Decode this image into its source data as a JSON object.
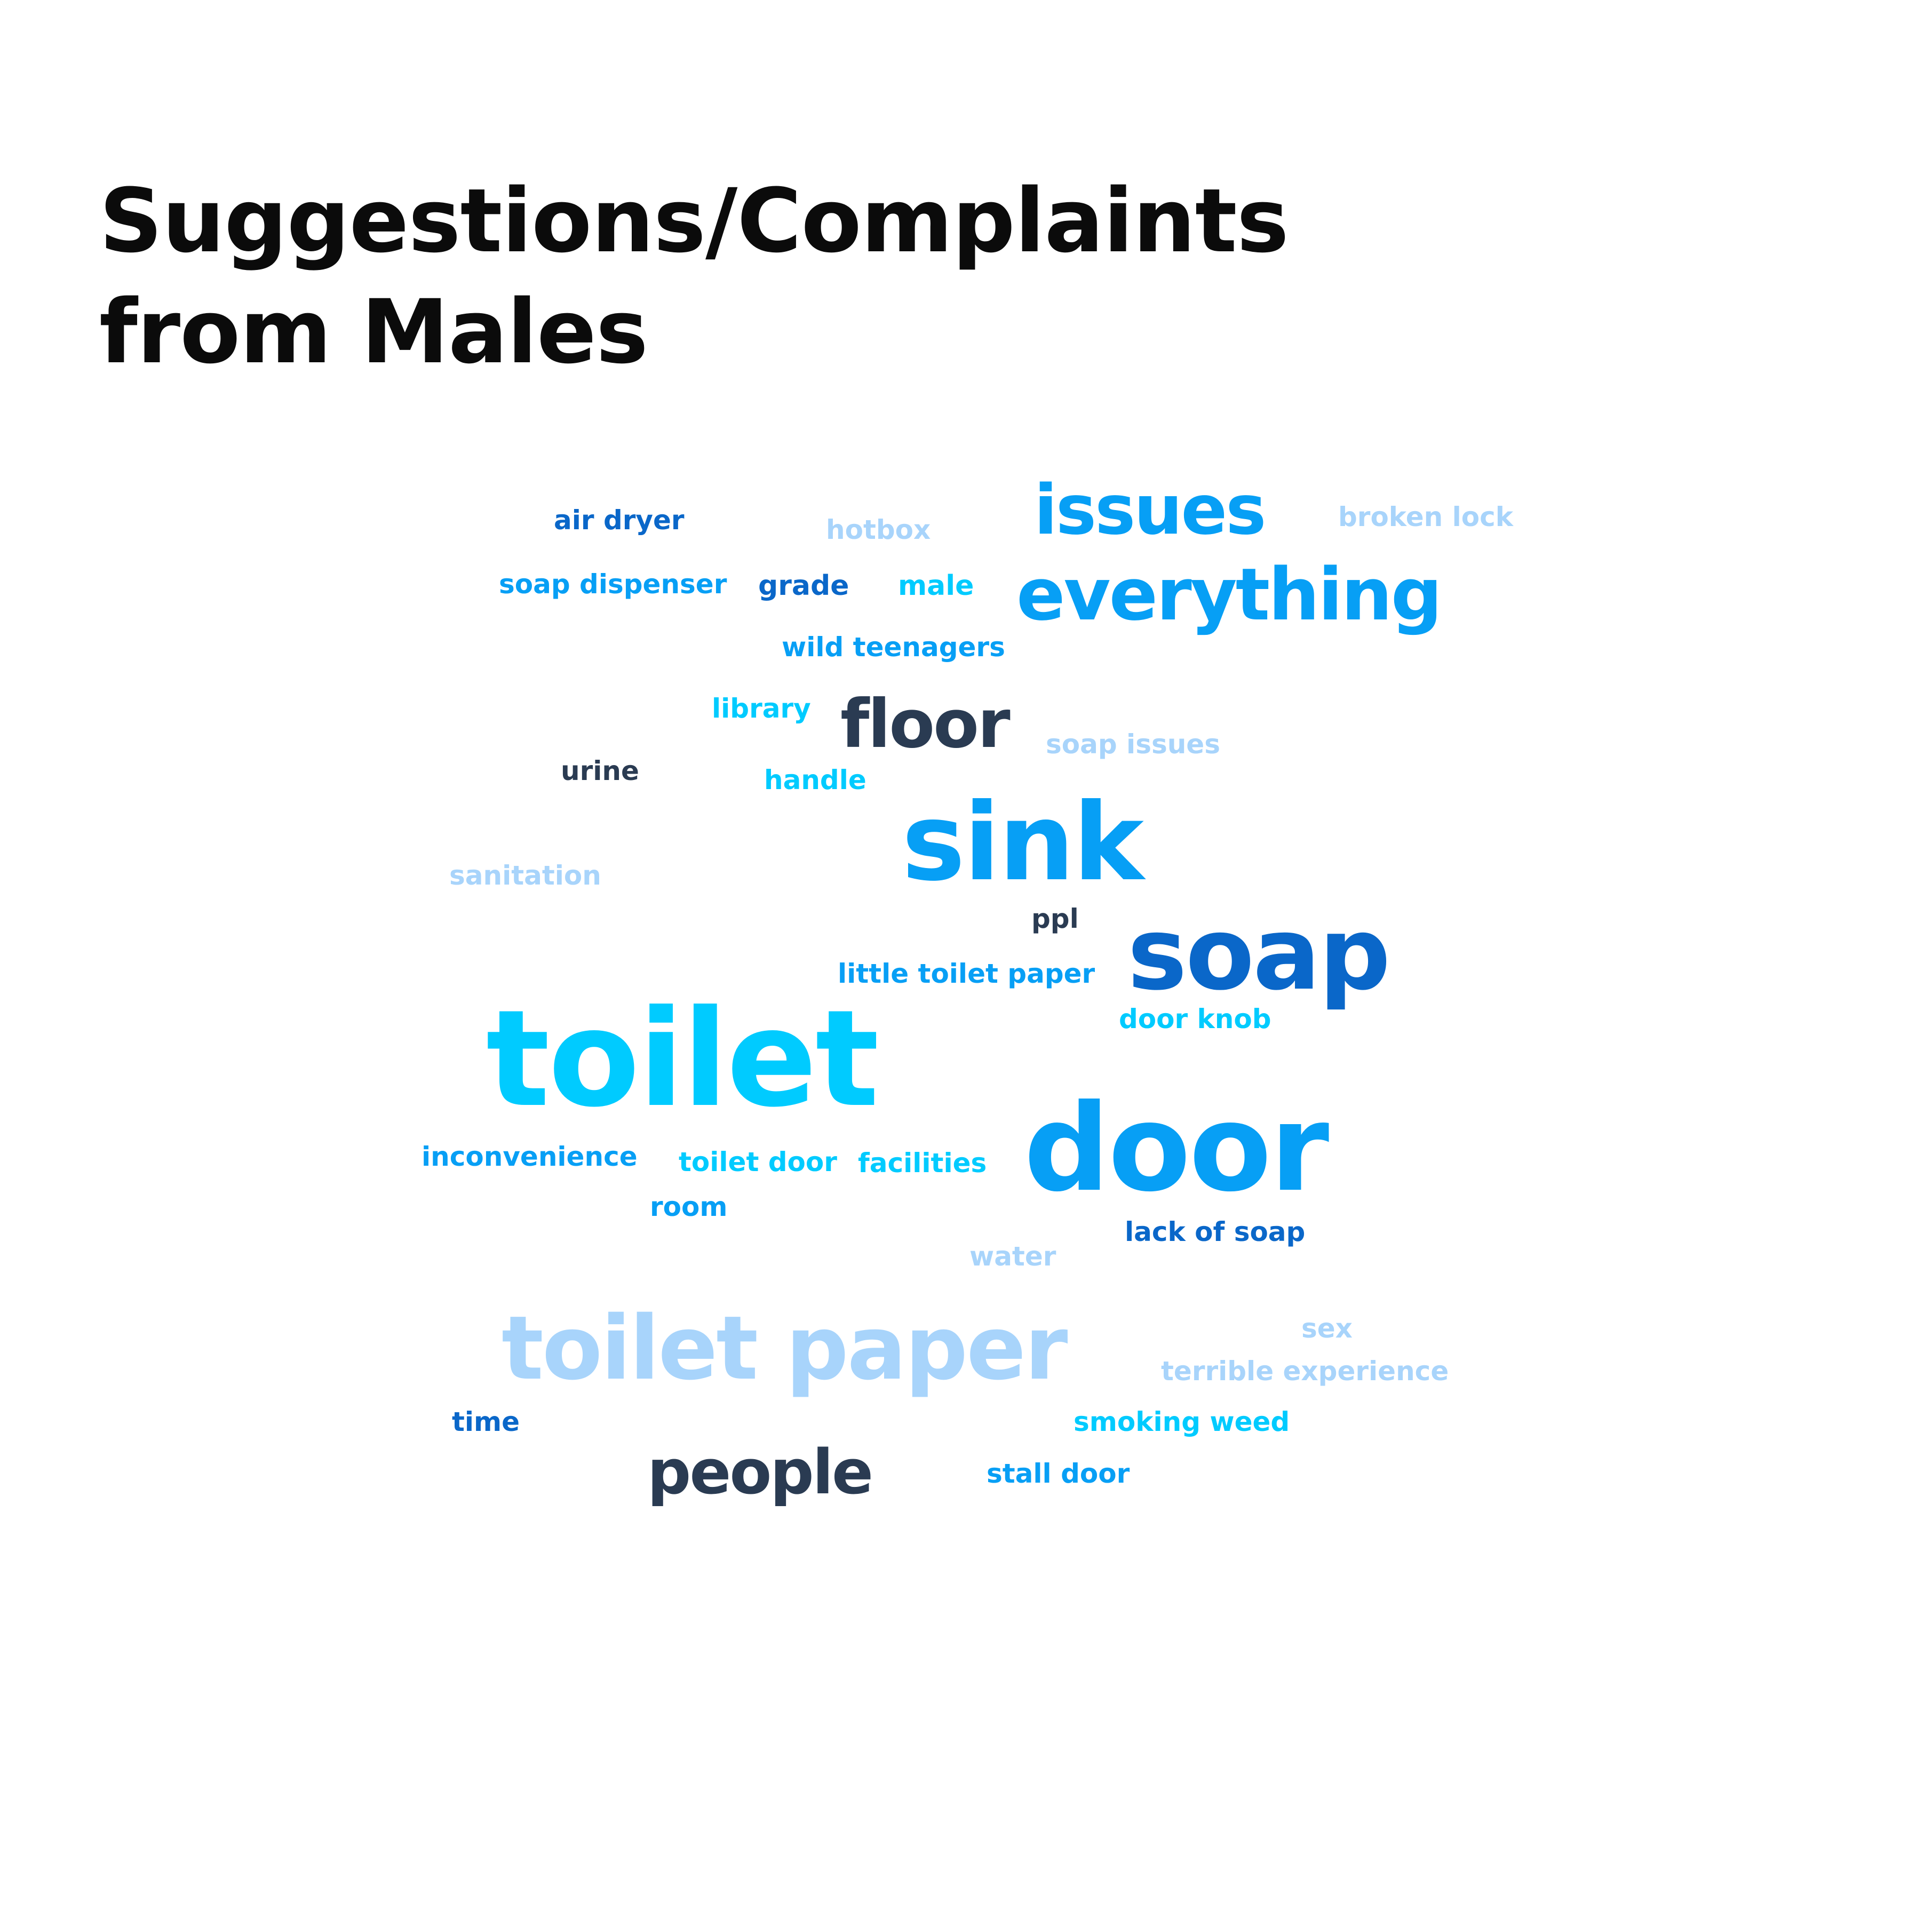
{
  "title": {
    "line1": "Suggestions/Complaints",
    "line2": "from Males"
  },
  "chart_data": {
    "type": "wordcloud",
    "palette": [
      "#0a67c9",
      "#079ff5",
      "#00cbff",
      "#a8d4fb",
      "#2a3b52"
    ],
    "words": [
      {
        "text": "air dryer",
        "color": "#0a67c9",
        "weight": 1
      },
      {
        "text": "hotbox",
        "color": "#a8d4fb",
        "weight": 1
      },
      {
        "text": "issues",
        "color": "#079ff5",
        "weight": 3
      },
      {
        "text": "broken lock",
        "color": "#a8d4fb",
        "weight": 1
      },
      {
        "text": "soap dispenser",
        "color": "#079ff5",
        "weight": 1
      },
      {
        "text": "grade",
        "color": "#0a67c9",
        "weight": 1
      },
      {
        "text": "male",
        "color": "#00cbff",
        "weight": 1
      },
      {
        "text": "everything",
        "color": "#079ff5",
        "weight": 3
      },
      {
        "text": "wild teenagers",
        "color": "#079ff5",
        "weight": 1
      },
      {
        "text": "library",
        "color": "#00cbff",
        "weight": 1
      },
      {
        "text": "floor",
        "color": "#2a3b52",
        "weight": 3
      },
      {
        "text": "soap issues",
        "color": "#a8d4fb",
        "weight": 1
      },
      {
        "text": "urine",
        "color": "#2a3b52",
        "weight": 1
      },
      {
        "text": "handle",
        "color": "#00cbff",
        "weight": 1
      },
      {
        "text": "sink",
        "color": "#079ff5",
        "weight": 5
      },
      {
        "text": "sanitation",
        "color": "#a8d4fb",
        "weight": 1
      },
      {
        "text": "ppl",
        "color": "#2a3b52",
        "weight": 1
      },
      {
        "text": "soap",
        "color": "#0a67c9",
        "weight": 5
      },
      {
        "text": "little toilet paper",
        "color": "#079ff5",
        "weight": 1
      },
      {
        "text": "door knob",
        "color": "#00cbff",
        "weight": 1
      },
      {
        "text": "toilet",
        "color": "#00cbff",
        "weight": 7
      },
      {
        "text": "door",
        "color": "#079ff5",
        "weight": 6
      },
      {
        "text": "inconvenience",
        "color": "#079ff5",
        "weight": 1
      },
      {
        "text": "toilet door",
        "color": "#00cbff",
        "weight": 1
      },
      {
        "text": "facilities",
        "color": "#00cbff",
        "weight": 1
      },
      {
        "text": "room",
        "color": "#079ff5",
        "weight": 1
      },
      {
        "text": "lack of soap",
        "color": "#0a67c9",
        "weight": 1
      },
      {
        "text": "water",
        "color": "#a8d4fb",
        "weight": 1
      },
      {
        "text": "toilet paper",
        "color": "#a8d4fb",
        "weight": 4
      },
      {
        "text": "sex",
        "color": "#a8d4fb",
        "weight": 1
      },
      {
        "text": "terrible experience",
        "color": "#a8d4fb",
        "weight": 1
      },
      {
        "text": "time",
        "color": "#0a67c9",
        "weight": 1
      },
      {
        "text": "smoking weed",
        "color": "#00cbff",
        "weight": 1
      },
      {
        "text": "people",
        "color": "#2a3b52",
        "weight": 3
      },
      {
        "text": "stall door",
        "color": "#079ff5",
        "weight": 1
      }
    ]
  }
}
